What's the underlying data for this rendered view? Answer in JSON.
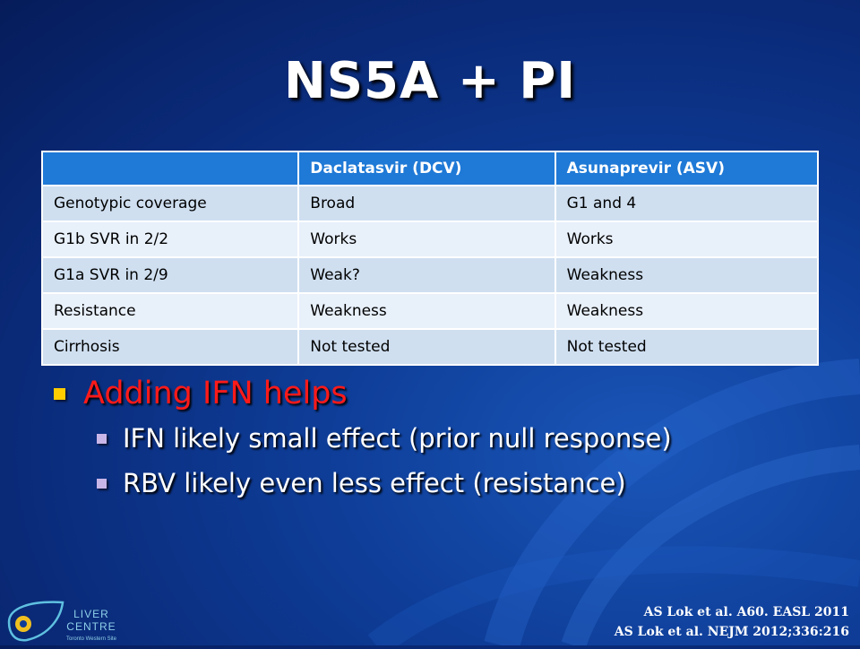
{
  "slide": {
    "title": "NS5A + PI"
  },
  "table": {
    "headers": [
      "",
      "Daclatasvir (DCV)",
      "Asunaprevir (ASV)"
    ],
    "rows": [
      [
        "Genotypic coverage",
        "Broad",
        "G1 and 4"
      ],
      [
        "G1b SVR in 2/2",
        "Works",
        "Works"
      ],
      [
        "G1a SVR in 2/9",
        "Weak?",
        "Weakness"
      ],
      [
        "Resistance",
        "Weakness",
        "Weakness"
      ],
      [
        "Cirrhosis",
        "Not tested",
        "Not tested"
      ]
    ]
  },
  "bullets": {
    "main": "Adding IFN helps",
    "sub": [
      "IFN likely small effect (prior null response)",
      "RBV likely even less effect (resistance)"
    ]
  },
  "references": [
    "AS Lok et al. A60. EASL 2011",
    "AS Lok et al. NEJM 2012;336:216"
  ],
  "logo": {
    "line1": "LIVER",
    "line2": "CENTRE",
    "line3": "Toronto Western Site"
  },
  "colors": {
    "table_header": "#1f79d6",
    "row_odd": "#cfdff0",
    "row_even": "#e8f0fa",
    "main_bullet_text": "#ff1a1a",
    "main_bullet_marker": "#ffcc00",
    "sub_bullet_marker": "#c9b6e8"
  }
}
